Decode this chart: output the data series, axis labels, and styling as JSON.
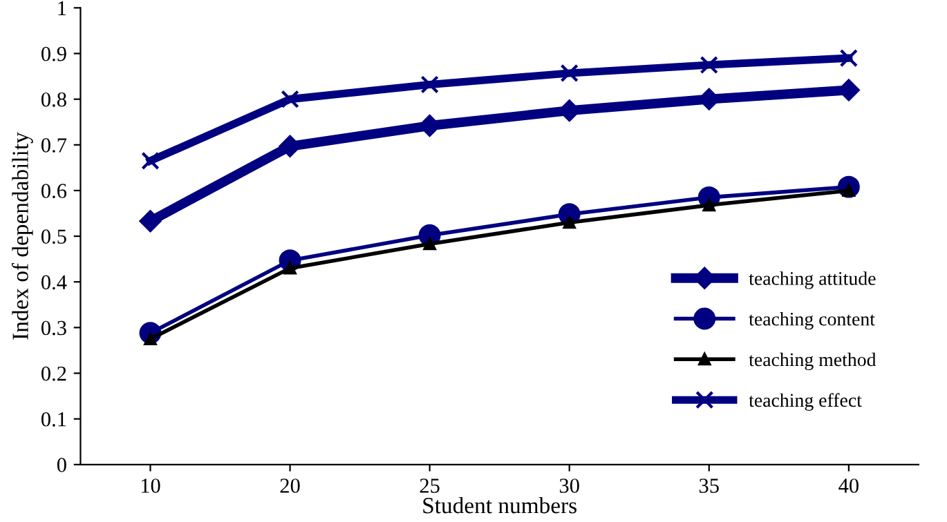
{
  "chart_data": {
    "type": "line",
    "xlabel": "Student numbers",
    "ylabel": "Index of dependability",
    "categories": [
      "10",
      "20",
      "25",
      "30",
      "35",
      "40"
    ],
    "series": [
      {
        "name": "teaching attitude",
        "color": "#000080",
        "marker": "diamond",
        "values": [
          0.533,
          0.697,
          0.742,
          0.775,
          0.8,
          0.82
        ]
      },
      {
        "name": "teaching content",
        "color": "#000080",
        "marker": "circle",
        "values": [
          0.288,
          0.447,
          0.502,
          0.548,
          0.585,
          0.608
        ]
      },
      {
        "name": "teaching method",
        "color": "#000000",
        "marker": "triangle",
        "values": [
          0.275,
          0.43,
          0.483,
          0.53,
          0.568,
          0.6
        ]
      },
      {
        "name": "teaching effect",
        "color": "#000080",
        "marker": "cross",
        "values": [
          0.665,
          0.8,
          0.832,
          0.857,
          0.875,
          0.89
        ]
      }
    ],
    "ylim": [
      0,
      1
    ],
    "yticks": [
      0,
      0.1,
      0.2,
      0.3,
      0.4,
      0.5,
      0.6,
      0.7,
      0.8,
      0.9,
      1
    ],
    "grid": false,
    "legend": "bottom right"
  }
}
